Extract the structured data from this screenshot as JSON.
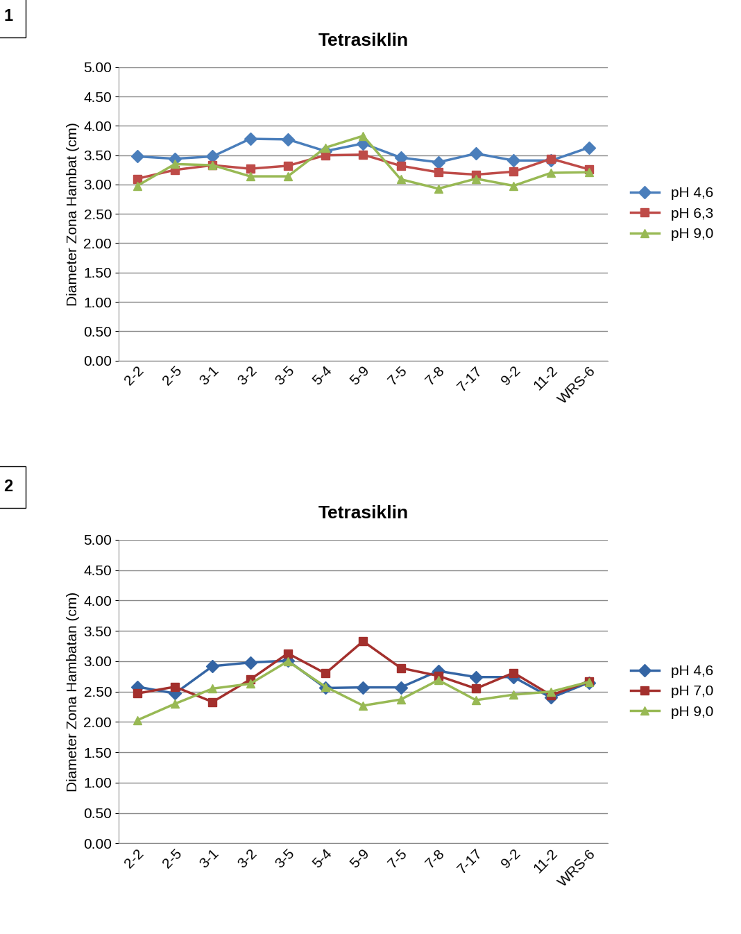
{
  "chart_data": [
    {
      "type": "line",
      "title": "Tetrasiklin",
      "annotations": [
        "1"
      ],
      "y_label": "Diameter Zona Hambat (cm)",
      "categories": [
        "2-2",
        "2-5",
        "3-1",
        "3-2",
        "3-5",
        "5-4",
        "5-9",
        "7-5",
        "7-8",
        "7-17",
        "9-2",
        "11-2",
        "WRS-6"
      ],
      "series": [
        {
          "name": "pH 4,6",
          "color": "#4a7ebb",
          "marker": "diamond",
          "values": [
            3.48,
            3.44,
            3.48,
            3.78,
            3.77,
            3.57,
            3.7,
            3.46,
            3.38,
            3.53,
            3.41,
            3.41,
            3.63
          ]
        },
        {
          "name": "pH 6,3",
          "color": "#be4b48",
          "marker": "square",
          "values": [
            3.1,
            3.25,
            3.33,
            3.27,
            3.32,
            3.5,
            3.51,
            3.32,
            3.21,
            3.17,
            3.22,
            3.44,
            3.26
          ]
        },
        {
          "name": "pH 9,0",
          "color": "#98b954",
          "marker": "triangle",
          "values": [
            2.98,
            3.35,
            3.33,
            3.14,
            3.14,
            3.63,
            3.83,
            3.09,
            2.93,
            3.1,
            2.98,
            3.2,
            3.21
          ]
        }
      ],
      "ylim": [
        0,
        5
      ],
      "yticks": [
        {
          "value": 0,
          "label": "0.00"
        },
        {
          "value": 0.5,
          "label": "0.50"
        },
        {
          "value": 1,
          "label": "1.00"
        },
        {
          "value": 1.5,
          "label": "1.50"
        },
        {
          "value": 2,
          "label": "2.00"
        },
        {
          "value": 2.5,
          "label": "2.50"
        },
        {
          "value": 3,
          "label": "3.00"
        },
        {
          "value": 3.5,
          "label": "3.50"
        },
        {
          "value": 4,
          "label": "4.00"
        },
        {
          "value": 4.5,
          "label": "4.50"
        },
        {
          "value": 5,
          "label": "5.00"
        }
      ],
      "grid": true,
      "legend": "right"
    },
    {
      "type": "line",
      "title": "Tetrasiklin",
      "annotations": [
        "2"
      ],
      "y_label": "Diameter Zona Hambatan (cm)",
      "categories": [
        "2-2",
        "2-5",
        "3-1",
        "3-2",
        "3-5",
        "5-4",
        "5-9",
        "7-5",
        "7-8",
        "7-17",
        "9-2",
        "11-2",
        "WRS-6"
      ],
      "series": [
        {
          "name": "pH 4,6",
          "color": "#3465a4",
          "marker": "diamond",
          "values": [
            2.58,
            2.47,
            2.92,
            2.98,
            3.01,
            2.56,
            2.57,
            2.57,
            2.84,
            2.74,
            2.74,
            2.4,
            2.65
          ]
        },
        {
          "name": "pH 7,0",
          "color": "#a3302d",
          "marker": "square",
          "values": [
            2.47,
            2.58,
            2.33,
            2.7,
            3.13,
            2.8,
            3.33,
            2.89,
            2.76,
            2.55,
            2.81,
            2.44,
            2.67
          ]
        },
        {
          "name": "pH 9,0",
          "color": "#98b954",
          "marker": "triangle",
          "values": [
            2.03,
            2.3,
            2.55,
            2.63,
            3.0,
            2.58,
            2.27,
            2.37,
            2.69,
            2.36,
            2.45,
            2.5,
            2.66
          ]
        }
      ],
      "ylim": [
        0,
        5
      ],
      "yticks": [
        {
          "value": 0,
          "label": "0.00"
        },
        {
          "value": 0.5,
          "label": "0.50"
        },
        {
          "value": 1,
          "label": "1.00"
        },
        {
          "value": 1.5,
          "label": "1.50"
        },
        {
          "value": 2,
          "label": "2.00"
        },
        {
          "value": 2.5,
          "label": "2.50"
        },
        {
          "value": 3,
          "label": "3.00"
        },
        {
          "value": 3.5,
          "label": "3.50"
        },
        {
          "value": 4,
          "label": "4.00"
        },
        {
          "value": 4.5,
          "label": "4.50"
        },
        {
          "value": 5,
          "label": "5.00"
        }
      ],
      "grid": true,
      "legend": "right"
    }
  ]
}
